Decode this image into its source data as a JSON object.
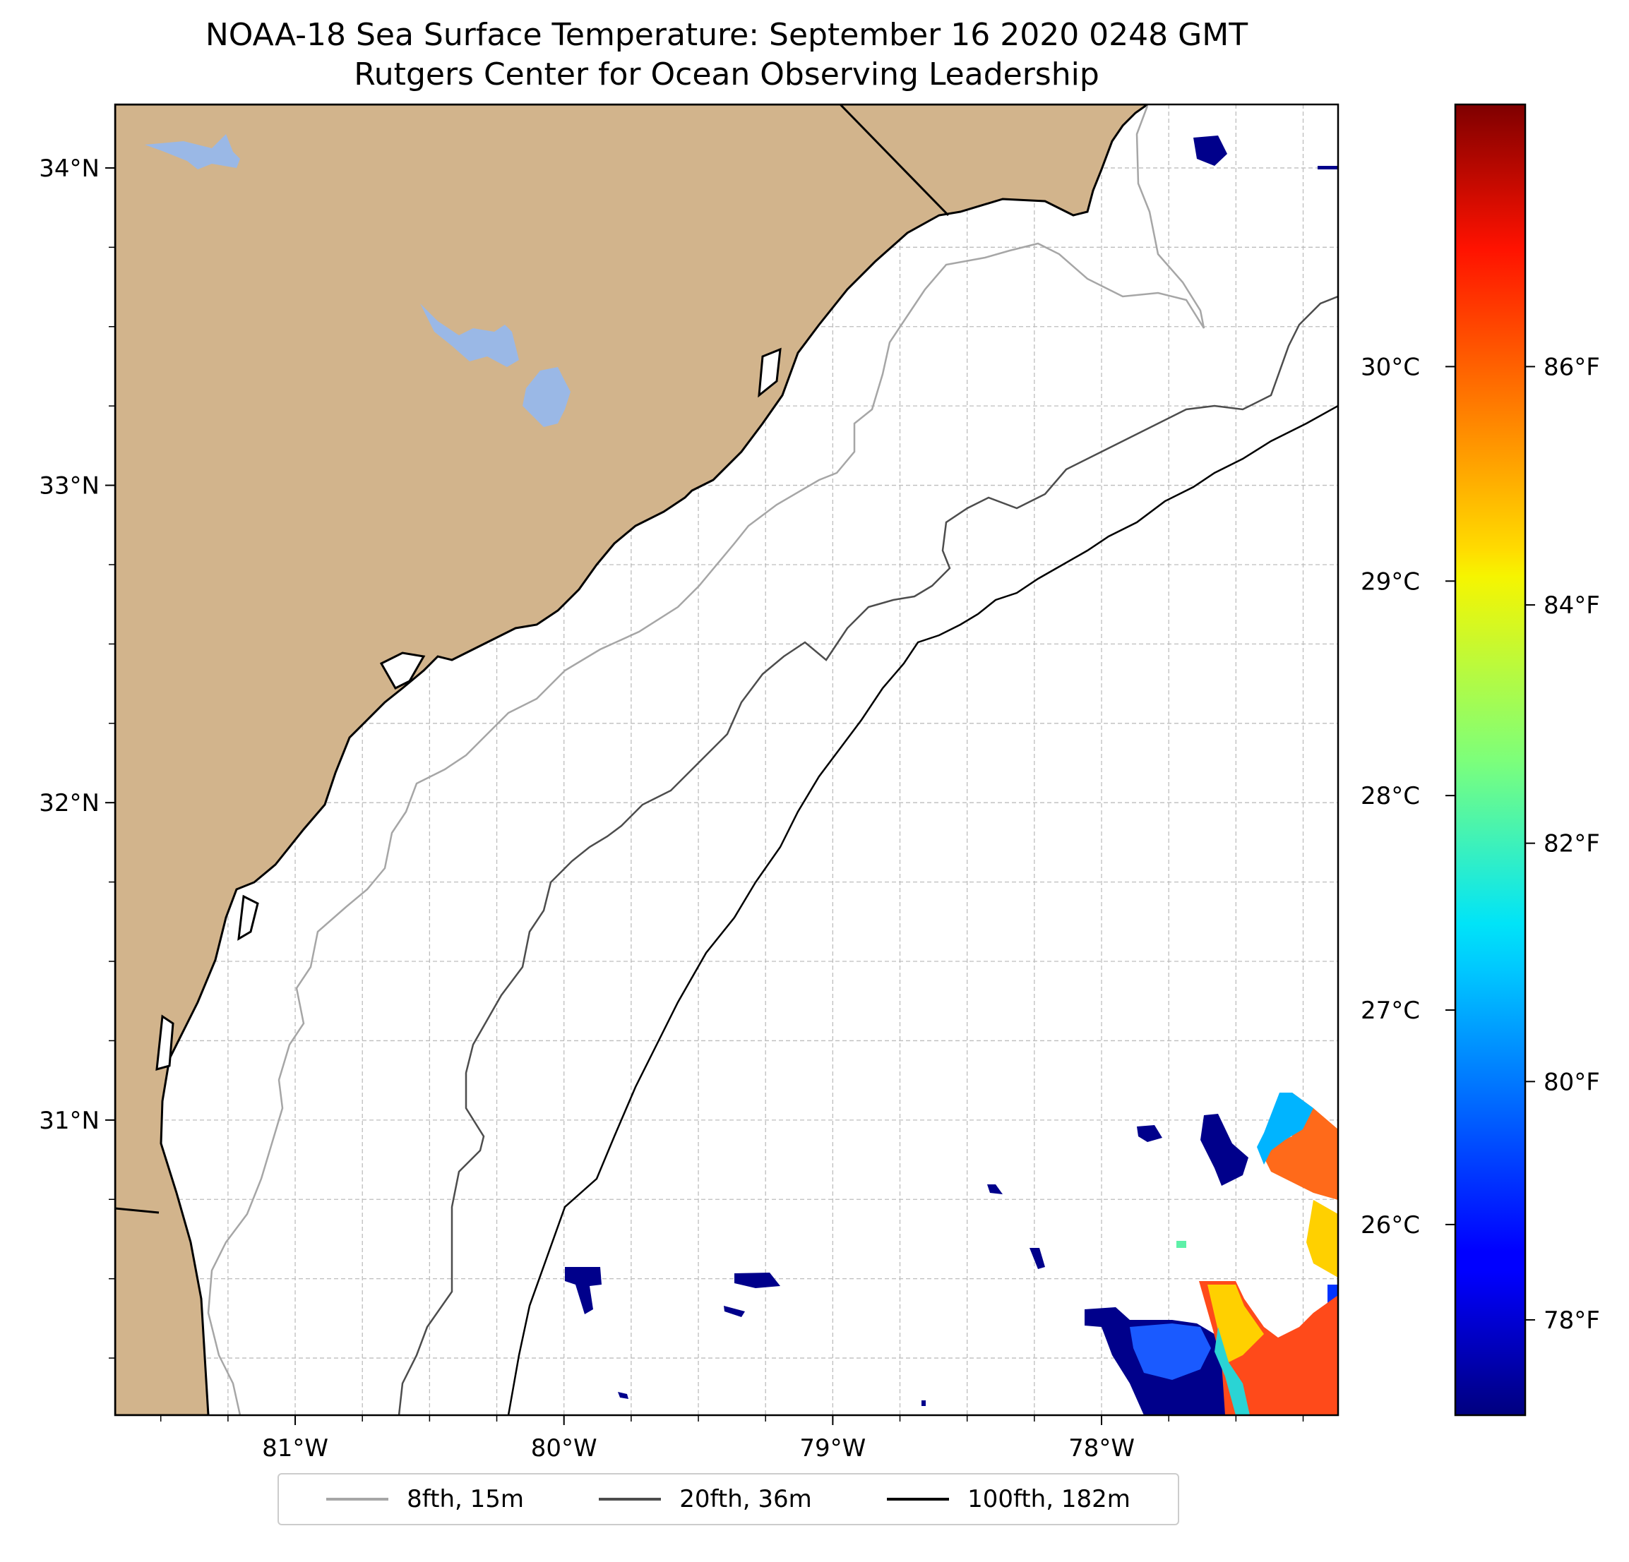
{
  "title": {
    "line1": "NOAA-18 Sea Surface Temperature: September 16 2020 0248 GMT",
    "line2": "Rutgers Center for Ocean Observing Leadership"
  },
  "map": {
    "lon_range": [
      -81.67,
      -77.12
    ],
    "lat_range": [
      30.07,
      34.2
    ],
    "land_color": "#d2b48c",
    "lake_color": "#9ab8e6",
    "coastline_color": "#000000",
    "gridlines": "dashed light gray",
    "lat_ticks": [
      {
        "value": 34,
        "label": "34°N"
      },
      {
        "value": 33,
        "label": "33°N"
      },
      {
        "value": 32,
        "label": "32°N"
      },
      {
        "value": 31,
        "label": "31°N"
      }
    ],
    "lon_ticks": [
      {
        "value": -81,
        "label": "81°W"
      },
      {
        "value": -80,
        "label": "80°W"
      },
      {
        "value": -79,
        "label": "79°W"
      },
      {
        "value": -78,
        "label": "78°W"
      }
    ]
  },
  "isobaths": [
    {
      "label": "8fth, 15m",
      "color": "#a6a6a6"
    },
    {
      "label": "20fth, 36m",
      "color": "#4d4d4d"
    },
    {
      "label": "100fth, 182m",
      "color": "#000000"
    }
  ],
  "colorbar": {
    "colormap": "jet",
    "range_f": [
      77.2,
      88.2
    ],
    "celsius_ticks": [
      {
        "value": 30,
        "label": "30°C"
      },
      {
        "value": 29,
        "label": "29°C"
      },
      {
        "value": 28,
        "label": "28°C"
      },
      {
        "value": 27,
        "label": "27°C"
      },
      {
        "value": 26,
        "label": "26°C"
      }
    ],
    "fahrenheit_ticks": [
      {
        "value": 86,
        "label": "86°F"
      },
      {
        "value": 84,
        "label": "84°F"
      },
      {
        "value": 82,
        "label": "82°F"
      },
      {
        "value": 80,
        "label": "80°F"
      },
      {
        "value": 78,
        "label": "78°F"
      }
    ]
  },
  "sst_patches": {
    "cold_color": "#00008b",
    "warm_colors": [
      "#ff4500",
      "#ff8c00",
      "#ffd700",
      "#00bfff",
      "#0033ff"
    ]
  }
}
